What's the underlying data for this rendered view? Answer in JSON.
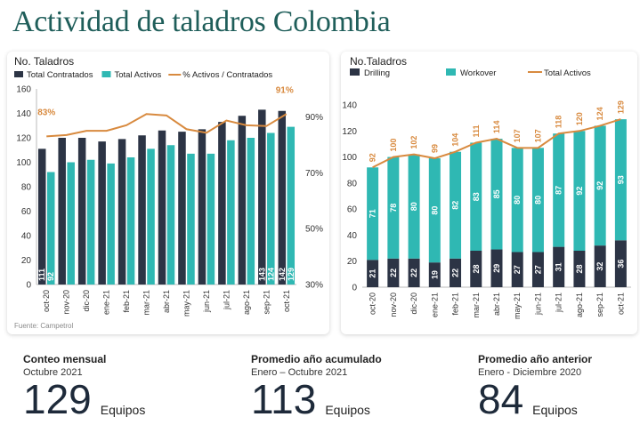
{
  "page": {
    "title": "Actividad de taladros Colombia",
    "source": "Fuente: Campetrol"
  },
  "colors": {
    "navy": "#2c3445",
    "teal": "#2fb8b3",
    "orange": "#d88a3f",
    "title": "#1f5e5a"
  },
  "chart_data": [
    {
      "type": "bar",
      "ylabel": "No. Taladros",
      "categories": [
        "oct-20",
        "nov-20",
        "dic-20",
        "ene-21",
        "feb-21",
        "mar-21",
        "abr-21",
        "may-21",
        "jun-21",
        "jul-21",
        "ago-21",
        "sep-21",
        "oct-21"
      ],
      "series": [
        {
          "name": "Total Contratados",
          "kind": "bar",
          "color": "#2c3445",
          "values": [
            111,
            120,
            120,
            117,
            119,
            122,
            126,
            125,
            127,
            133,
            138,
            143,
            142
          ],
          "labels": [
            "111",
            "",
            "",
            "",
            "",
            "",
            "",
            "",
            "",
            "",
            "",
            "143",
            "142"
          ]
        },
        {
          "name": "Total Activos",
          "kind": "bar",
          "color": "#2fb8b3",
          "values": [
            92,
            100,
            102,
            99,
            104,
            111,
            114,
            107,
            107,
            118,
            120,
            124,
            129
          ],
          "labels": [
            "92",
            "",
            "",
            "",
            "",
            "",
            "",
            "",
            "",
            "",
            "",
            "124",
            "129"
          ]
        },
        {
          "name": "% Activos / Contratados",
          "kind": "line",
          "axis": "right",
          "color": "#d88a3f",
          "values": [
            83,
            83.5,
            85,
            85,
            87,
            91,
            90.5,
            85.6,
            84.3,
            88.7,
            87,
            86.7,
            91
          ],
          "labels": [
            "83%",
            "",
            "",
            "",
            "",
            "",
            "",
            "",
            "",
            "",
            "",
            "",
            "91%"
          ]
        }
      ],
      "ylim": [
        0,
        160
      ],
      "yticks": [
        0,
        20,
        40,
        60,
        80,
        100,
        120,
        140,
        160
      ],
      "y2lim": [
        30,
        100
      ],
      "y2ticks": [
        "30%",
        "50%",
        "70%",
        "90%"
      ],
      "legend_position": "top"
    },
    {
      "type": "bar",
      "stacked": true,
      "ylabel": "No.Taladros",
      "categories": [
        "oct-20",
        "nov-20",
        "dic-20",
        "ene-21",
        "feb-21",
        "mar-21",
        "abr-21",
        "may-21",
        "jun-21",
        "jul-21",
        "ago-21",
        "sep-21",
        "oct-21"
      ],
      "series": [
        {
          "name": "Drilling",
          "kind": "bar",
          "color": "#2c3445",
          "values": [
            21,
            22,
            22,
            19,
            22,
            28,
            29,
            27,
            27,
            31,
            28,
            32,
            36
          ]
        },
        {
          "name": "Workover",
          "kind": "bar",
          "color": "#2fb8b3",
          "values": [
            71,
            78,
            80,
            80,
            82,
            83,
            85,
            80,
            80,
            87,
            92,
            92,
            93
          ]
        },
        {
          "name": "Total Activos",
          "kind": "line",
          "color": "#d88a3f",
          "values": [
            92,
            100,
            102,
            99,
            104,
            111,
            114,
            107,
            107,
            118,
            120,
            124,
            129
          ]
        }
      ],
      "ylim": [
        0,
        140
      ],
      "yticks": [
        0,
        20,
        40,
        60,
        80,
        100,
        120,
        140
      ],
      "legend_position": "top"
    }
  ],
  "stats": [
    {
      "title": "Conteo mensual",
      "subtitle": "Octubre 2021",
      "value": "129",
      "unit": "Equipos"
    },
    {
      "title": "Promedio año acumulado",
      "subtitle": "Enero – Octubre 2021",
      "value": "113",
      "unit": "Equipos"
    },
    {
      "title": "Promedio año anterior",
      "subtitle": "Enero - Diciembre 2020",
      "value": "84",
      "unit": "Equipos"
    }
  ]
}
